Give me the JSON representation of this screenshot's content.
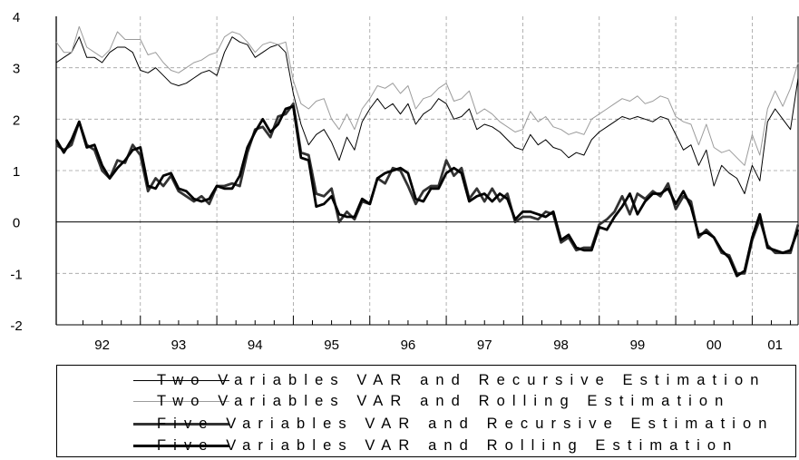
{
  "chart_data": {
    "type": "line",
    "title": "",
    "xlabel": "",
    "ylabel": "",
    "ylim": [
      -2,
      4
    ],
    "y_ticks": [
      "4",
      "3",
      "2",
      "1",
      "0",
      "-1",
      "-2"
    ],
    "x_range": [
      1991.9,
      2001.6
    ],
    "year_labels": [
      "92",
      "93",
      "94",
      "95",
      "96",
      "97",
      "98",
      "99",
      "00",
      "01"
    ],
    "grid": true,
    "legend_position": "bottom",
    "series": [
      {
        "name": "Two Variables VAR and Recursive Estimation",
        "color": "#000000",
        "style": "thin",
        "x": [
          1991.9,
          1992,
          1992.1,
          1992.2,
          1992.3,
          1992.4,
          1992.5,
          1992.6,
          1992.7,
          1992.8,
          1992.9,
          1993,
          1993.1,
          1993.2,
          1993.3,
          1993.4,
          1993.5,
          1993.6,
          1993.7,
          1993.8,
          1993.9,
          1994,
          1994.1,
          1994.2,
          1994.3,
          1994.4,
          1994.5,
          1994.6,
          1994.7,
          1994.8,
          1994.9,
          1995,
          1995.1,
          1995.2,
          1995.3,
          1995.4,
          1995.5,
          1995.6,
          1995.7,
          1995.8,
          1995.9,
          1996,
          1996.1,
          1996.2,
          1996.3,
          1996.4,
          1996.5,
          1996.6,
          1996.7,
          1996.8,
          1996.9,
          1997,
          1997.1,
          1997.2,
          1997.3,
          1997.4,
          1997.5,
          1997.6,
          1997.7,
          1997.8,
          1997.9,
          1998,
          1998.1,
          1998.2,
          1998.3,
          1998.4,
          1998.5,
          1998.6,
          1998.7,
          1998.8,
          1998.9,
          1999,
          1999.1,
          1999.2,
          1999.3,
          1999.4,
          1999.5,
          1999.6,
          1999.7,
          1999.8,
          1999.9,
          2000,
          2000.1,
          2000.2,
          2000.3,
          2000.4,
          2000.5,
          2000.6,
          2000.7,
          2000.8,
          2000.9,
          2001,
          2001.1,
          2001.2,
          2001.3,
          2001.4,
          2001.5,
          2001.6
        ],
        "y": [
          3.1,
          3.2,
          3.3,
          3.6,
          3.2,
          3.2,
          3.1,
          3.3,
          3.4,
          3.4,
          3.3,
          2.95,
          2.9,
          3.0,
          2.85,
          2.7,
          2.65,
          2.7,
          2.8,
          2.9,
          2.95,
          2.85,
          3.3,
          3.6,
          3.5,
          3.45,
          3.2,
          3.3,
          3.4,
          3.45,
          3.3,
          2.5,
          1.9,
          1.5,
          1.7,
          1.8,
          1.55,
          1.2,
          1.65,
          1.4,
          1.95,
          2.2,
          2.4,
          2.2,
          2.3,
          2.1,
          2.3,
          1.9,
          2.1,
          2.2,
          2.4,
          2.3,
          2.0,
          2.05,
          2.2,
          1.8,
          1.9,
          1.85,
          1.75,
          1.6,
          1.45,
          1.4,
          1.7,
          1.5,
          1.6,
          1.45,
          1.4,
          1.25,
          1.35,
          1.3,
          1.6,
          1.75,
          1.85,
          1.95,
          2.05,
          2.0,
          2.05,
          2.0,
          1.95,
          2.05,
          2.0,
          1.7,
          1.4,
          1.5,
          1.1,
          1.4,
          0.7,
          1.1,
          0.95,
          0.85,
          0.55,
          1.1,
          0.8,
          1.95,
          2.2,
          2.0,
          1.8,
          2.8
        ]
      },
      {
        "name": "Two Variables VAR and Rolling Estimation",
        "color": "#9b9b9b",
        "style": "thin",
        "x": [
          1991.9,
          1992,
          1992.1,
          1992.2,
          1992.3,
          1992.4,
          1992.5,
          1992.6,
          1992.7,
          1992.8,
          1992.9,
          1993,
          1993.1,
          1993.2,
          1993.3,
          1993.4,
          1993.5,
          1993.6,
          1993.7,
          1993.8,
          1993.9,
          1994,
          1994.1,
          1994.2,
          1994.3,
          1994.4,
          1994.5,
          1994.6,
          1994.7,
          1994.8,
          1994.9,
          1995,
          1995.1,
          1995.2,
          1995.3,
          1995.4,
          1995.5,
          1995.6,
          1995.7,
          1995.8,
          1995.9,
          1996,
          1996.1,
          1996.2,
          1996.3,
          1996.4,
          1996.5,
          1996.6,
          1996.7,
          1996.8,
          1996.9,
          1997,
          1997.1,
          1997.2,
          1997.3,
          1997.4,
          1997.5,
          1997.6,
          1997.7,
          1997.8,
          1997.9,
          1998,
          1998.1,
          1998.2,
          1998.3,
          1998.4,
          1998.5,
          1998.6,
          1998.7,
          1998.8,
          1998.9,
          1999,
          1999.1,
          1999.2,
          1999.3,
          1999.4,
          1999.5,
          1999.6,
          1999.7,
          1999.8,
          1999.9,
          2000,
          2000.1,
          2000.2,
          2000.3,
          2000.4,
          2000.5,
          2000.6,
          2000.7,
          2000.8,
          2000.9,
          2001,
          2001.1,
          2001.2,
          2001.3,
          2001.4,
          2001.5,
          2001.6
        ],
        "y": [
          3.5,
          3.3,
          3.3,
          3.8,
          3.4,
          3.3,
          3.2,
          3.35,
          3.7,
          3.55,
          3.55,
          3.55,
          3.25,
          3.3,
          3.1,
          2.95,
          2.9,
          3.0,
          3.1,
          3.15,
          3.25,
          3.3,
          3.6,
          3.7,
          3.65,
          3.5,
          3.3,
          3.45,
          3.5,
          3.45,
          3.5,
          2.75,
          2.3,
          2.2,
          2.35,
          2.4,
          2.0,
          1.8,
          2.1,
          1.8,
          2.2,
          2.4,
          2.65,
          2.6,
          2.7,
          2.5,
          2.65,
          2.2,
          2.4,
          2.45,
          2.6,
          2.7,
          2.35,
          2.4,
          2.55,
          2.1,
          2.2,
          2.1,
          1.95,
          1.85,
          1.75,
          1.8,
          2.15,
          1.95,
          2.05,
          1.85,
          1.8,
          1.7,
          1.75,
          1.7,
          2.0,
          2.1,
          2.2,
          2.3,
          2.4,
          2.35,
          2.45,
          2.3,
          2.35,
          2.45,
          2.4,
          2.05,
          1.95,
          1.9,
          1.5,
          1.9,
          1.45,
          1.35,
          1.4,
          1.25,
          1.1,
          1.7,
          1.3,
          2.2,
          2.55,
          2.25,
          2.6,
          3.1
        ]
      },
      {
        "name": "Five Variables VAR and Recursive Estimation",
        "color": "#333333",
        "style": "thick",
        "x": [
          1991.9,
          1992,
          1992.1,
          1992.2,
          1992.3,
          1992.4,
          1992.5,
          1992.6,
          1992.7,
          1992.8,
          1992.9,
          1993,
          1993.1,
          1993.2,
          1993.3,
          1993.4,
          1993.5,
          1993.6,
          1993.7,
          1993.8,
          1993.9,
          1994,
          1994.1,
          1994.2,
          1994.3,
          1994.4,
          1994.5,
          1994.6,
          1994.7,
          1994.8,
          1994.9,
          1995,
          1995.1,
          1995.2,
          1995.3,
          1995.4,
          1995.5,
          1995.6,
          1995.7,
          1995.8,
          1995.9,
          1996,
          1996.1,
          1996.2,
          1996.3,
          1996.4,
          1996.5,
          1996.6,
          1996.7,
          1996.8,
          1996.9,
          1997,
          1997.1,
          1997.2,
          1997.3,
          1997.4,
          1997.5,
          1997.6,
          1997.7,
          1997.8,
          1997.9,
          1998,
          1998.1,
          1998.2,
          1998.3,
          1998.4,
          1998.5,
          1998.6,
          1998.7,
          1998.8,
          1998.9,
          1999,
          1999.1,
          1999.2,
          1999.3,
          1999.4,
          1999.5,
          1999.6,
          1999.7,
          1999.8,
          1999.9,
          2000,
          2000.1,
          2000.2,
          2000.3,
          2000.4,
          2000.5,
          2000.6,
          2000.7,
          2000.8,
          2000.9,
          2001,
          2001.1,
          2001.2,
          2001.3,
          2001.4,
          2001.5,
          2001.6
        ],
        "y": [
          1.5,
          1.4,
          1.5,
          1.95,
          1.5,
          1.4,
          1.0,
          0.85,
          1.2,
          1.15,
          1.5,
          1.3,
          0.6,
          0.85,
          0.7,
          0.9,
          0.6,
          0.5,
          0.4,
          0.5,
          0.35,
          0.7,
          0.7,
          0.75,
          0.7,
          1.35,
          1.8,
          1.85,
          1.65,
          2.05,
          2.1,
          2.3,
          1.35,
          1.3,
          0.55,
          0.5,
          0.65,
          0.0,
          0.2,
          0.05,
          0.4,
          0.35,
          0.85,
          0.75,
          1.05,
          1.0,
          0.7,
          0.35,
          0.6,
          0.7,
          0.7,
          1.2,
          0.9,
          1.05,
          0.45,
          0.65,
          0.4,
          0.65,
          0.4,
          0.55,
          0.0,
          0.1,
          0.1,
          0.05,
          0.2,
          0.15,
          -0.4,
          -0.3,
          -0.55,
          -0.5,
          -0.5,
          -0.05,
          0.05,
          0.2,
          0.5,
          0.15,
          0.55,
          0.45,
          0.6,
          0.5,
          0.75,
          0.25,
          0.5,
          0.4,
          -0.3,
          -0.15,
          -0.3,
          -0.6,
          -0.65,
          -1.0,
          -1.0,
          -0.35,
          0.05,
          -0.45,
          -0.6,
          -0.6,
          -0.6,
          -0.05
        ]
      },
      {
        "name": "Five Variables VAR and Rolling Estimation",
        "color": "#000000",
        "style": "thick",
        "x": [
          1991.9,
          1992,
          1992.1,
          1992.2,
          1992.3,
          1992.4,
          1992.5,
          1992.6,
          1992.7,
          1992.8,
          1992.9,
          1993,
          1993.1,
          1993.2,
          1993.3,
          1993.4,
          1993.5,
          1993.6,
          1993.7,
          1993.8,
          1993.9,
          1994,
          1994.1,
          1994.2,
          1994.3,
          1994.4,
          1994.5,
          1994.6,
          1994.7,
          1994.8,
          1994.9,
          1995,
          1995.1,
          1995.2,
          1995.3,
          1995.4,
          1995.5,
          1995.6,
          1995.7,
          1995.8,
          1995.9,
          1996,
          1996.1,
          1996.2,
          1996.3,
          1996.4,
          1996.5,
          1996.6,
          1996.7,
          1996.8,
          1996.9,
          1997,
          1997.1,
          1997.2,
          1997.3,
          1997.4,
          1997.5,
          1997.6,
          1997.7,
          1997.8,
          1997.9,
          1998,
          1998.1,
          1998.2,
          1998.3,
          1998.4,
          1998.5,
          1998.6,
          1998.7,
          1998.8,
          1998.9,
          1999,
          1999.1,
          1999.2,
          1999.3,
          1999.4,
          1999.5,
          1999.6,
          1999.7,
          1999.8,
          1999.9,
          2000,
          2000.1,
          2000.2,
          2000.3,
          2000.4,
          2000.5,
          2000.6,
          2000.7,
          2000.8,
          2000.9,
          2001,
          2001.1,
          2001.2,
          2001.3,
          2001.4,
          2001.5,
          2001.6
        ],
        "y": [
          1.6,
          1.35,
          1.6,
          1.95,
          1.45,
          1.5,
          1.1,
          0.85,
          1.05,
          1.2,
          1.4,
          1.45,
          0.7,
          0.65,
          0.9,
          0.95,
          0.65,
          0.6,
          0.45,
          0.4,
          0.45,
          0.7,
          0.65,
          0.65,
          0.9,
          1.45,
          1.75,
          2.0,
          1.75,
          1.9,
          2.2,
          2.25,
          1.25,
          1.2,
          0.3,
          0.35,
          0.5,
          0.15,
          0.1,
          0.1,
          0.45,
          0.35,
          0.85,
          0.95,
          1.0,
          1.05,
          0.95,
          0.45,
          0.4,
          0.65,
          0.65,
          0.95,
          1.05,
          0.95,
          0.4,
          0.5,
          0.55,
          0.4,
          0.55,
          0.45,
          0.05,
          0.2,
          0.2,
          0.15,
          0.1,
          0.2,
          -0.35,
          -0.25,
          -0.5,
          -0.55,
          -0.55,
          -0.1,
          -0.15,
          0.1,
          0.3,
          0.55,
          0.15,
          0.4,
          0.55,
          0.55,
          0.65,
          0.35,
          0.6,
          0.3,
          -0.25,
          -0.2,
          -0.3,
          -0.55,
          -0.7,
          -1.05,
          -0.95,
          -0.3,
          0.15,
          -0.5,
          -0.55,
          -0.6,
          -0.55,
          -0.15
        ]
      }
    ]
  },
  "legend": {
    "items": [
      {
        "label": "Two Variables VAR and Recursive Estimation"
      },
      {
        "label": "Two Variables VAR and Rolling Estimation"
      },
      {
        "label": "Five Variables VAR and Recursive Estimation"
      },
      {
        "label": "Five Variables VAR and Rolling Estimation"
      }
    ]
  }
}
